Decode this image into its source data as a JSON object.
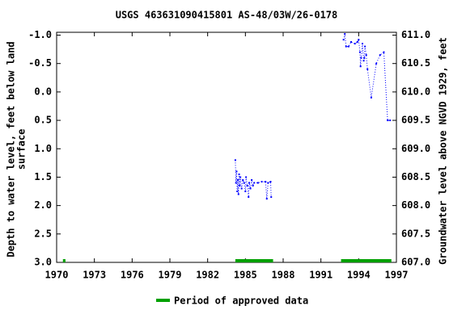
{
  "chart_data": {
    "type": "line",
    "title": "USGS 463631090415801 AS-48/03W/26-0178",
    "y_label": [
      "Depth to water level, feet below land",
      "surface"
    ],
    "y2_label": "Groundwater level above NGVD 1929, feet",
    "xlim": [
      1970,
      1997
    ],
    "xticks": [
      1970,
      1973,
      1976,
      1979,
      1982,
      1985,
      1988,
      1991,
      1994,
      1997
    ],
    "ylim": [
      -1.05,
      3.0
    ],
    "yticks": [
      {
        "value": -1,
        "label": "-1.0"
      },
      {
        "value": -0.5,
        "label": "-0.5"
      },
      {
        "value": 0,
        "label": "0.0"
      },
      {
        "value": 0.5,
        "label": "0.5"
      },
      {
        "value": 1,
        "label": "1.0"
      },
      {
        "value": 1.5,
        "label": "1.5"
      },
      {
        "value": 2,
        "label": "2.0"
      },
      {
        "value": 2.5,
        "label": "2.5"
      },
      {
        "value": 3,
        "label": "3.0"
      }
    ],
    "y2lim": [
      607.0,
      611.05
    ],
    "y2ticks": [
      {
        "value": 607,
        "label": "607.0"
      },
      {
        "value": 607.5,
        "label": "607.5"
      },
      {
        "value": 608,
        "label": "608.0"
      },
      {
        "value": 608.5,
        "label": "608.5"
      },
      {
        "value": 609,
        "label": "609.0"
      },
      {
        "value": 609.5,
        "label": "609.5"
      },
      {
        "value": 610,
        "label": "610.0"
      },
      {
        "value": 610.5,
        "label": "610.5"
      },
      {
        "value": 611,
        "label": "611.0"
      }
    ],
    "x": [
      1984.2,
      1984.25,
      1984.3,
      1984.35,
      1984.4,
      1984.45,
      1984.5,
      1984.55,
      1984.6,
      1984.7,
      1984.8,
      1984.9,
      1985.0,
      1985.05,
      1985.15,
      1985.25,
      1985.3,
      1985.4,
      1985.5,
      1985.6,
      1985.7,
      1986.0,
      1986.3,
      1986.6,
      1986.7,
      1986.8,
      1987.0,
      1987.05,
      1990.0,
      1992.8,
      1992.9,
      1993.0,
      1993.2,
      1993.4,
      1993.7,
      1993.9,
      1994.0,
      1994.1,
      1994.15,
      1994.2,
      1994.3,
      1994.4,
      1994.45,
      1994.5,
      1994.6,
      1994.7,
      1995.0,
      1995.4,
      1995.7,
      1996.0,
      1996.3,
      1996.5
    ],
    "series": [
      {
        "color": "#0000ff",
        "values": [
          1.2,
          1.6,
          1.4,
          1.75,
          1.55,
          1.8,
          1.45,
          1.65,
          1.5,
          1.7,
          1.55,
          1.6,
          1.75,
          1.5,
          1.65,
          1.85,
          1.6,
          1.7,
          1.55,
          1.65,
          1.6,
          1.6,
          1.58,
          1.58,
          1.88,
          1.6,
          1.58,
          1.85,
          null,
          -0.92,
          -1.02,
          -0.8,
          -0.8,
          -0.88,
          -0.85,
          -0.88,
          -0.92,
          -0.7,
          -0.45,
          -0.6,
          -0.85,
          -0.55,
          -0.6,
          -0.8,
          -0.65,
          -0.4,
          0.1,
          -0.5,
          -0.65,
          -0.7,
          0.5,
          0.5
        ]
      }
    ],
    "approved_periods": {
      "name": "Period of approved data",
      "color": "#00a000",
      "ranges": [
        [
          1970.5,
          1970.7
        ],
        [
          1984.2,
          1987.2
        ],
        [
          1992.6,
          1996.6
        ]
      ]
    }
  }
}
